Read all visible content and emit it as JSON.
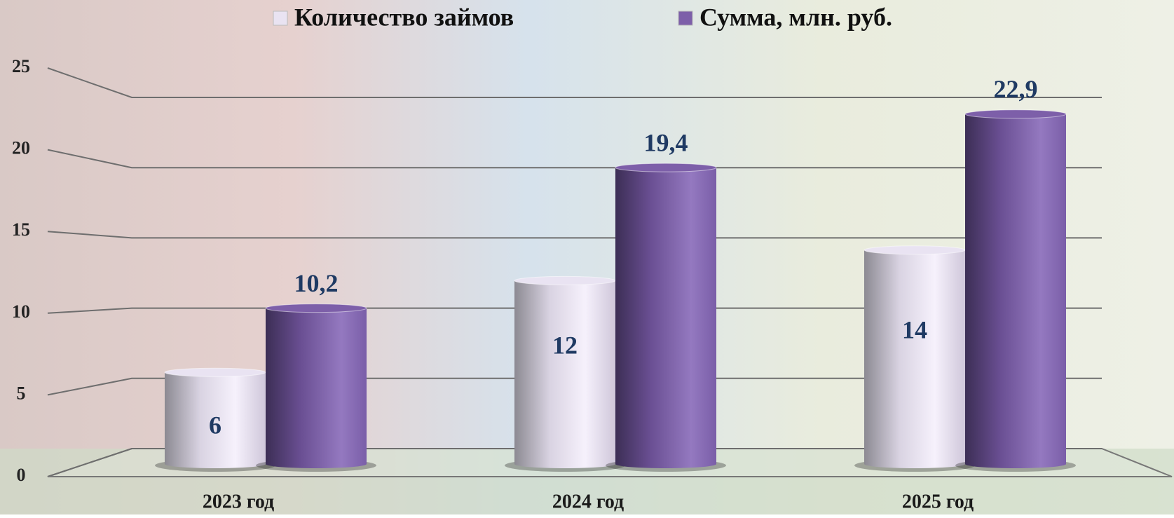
{
  "chart_data": {
    "type": "bar",
    "categories": [
      "2023 год",
      "2024 год",
      "2025 год"
    ],
    "series": [
      {
        "name": "Количество займов",
        "color": "#e9e3f2",
        "values": [
          6,
          12,
          14
        ]
      },
      {
        "name": "Сумма, млн. руб.",
        "color": "#7d5fa9",
        "values": [
          10.2,
          19.4,
          22.9
        ],
        "value_labels": [
          "10,2",
          "19,4",
          "22,9"
        ]
      }
    ],
    "ylim": [
      0,
      25
    ],
    "yticks": [
      0,
      5,
      10,
      15,
      20,
      25
    ],
    "grid": true,
    "legend": "top"
  }
}
